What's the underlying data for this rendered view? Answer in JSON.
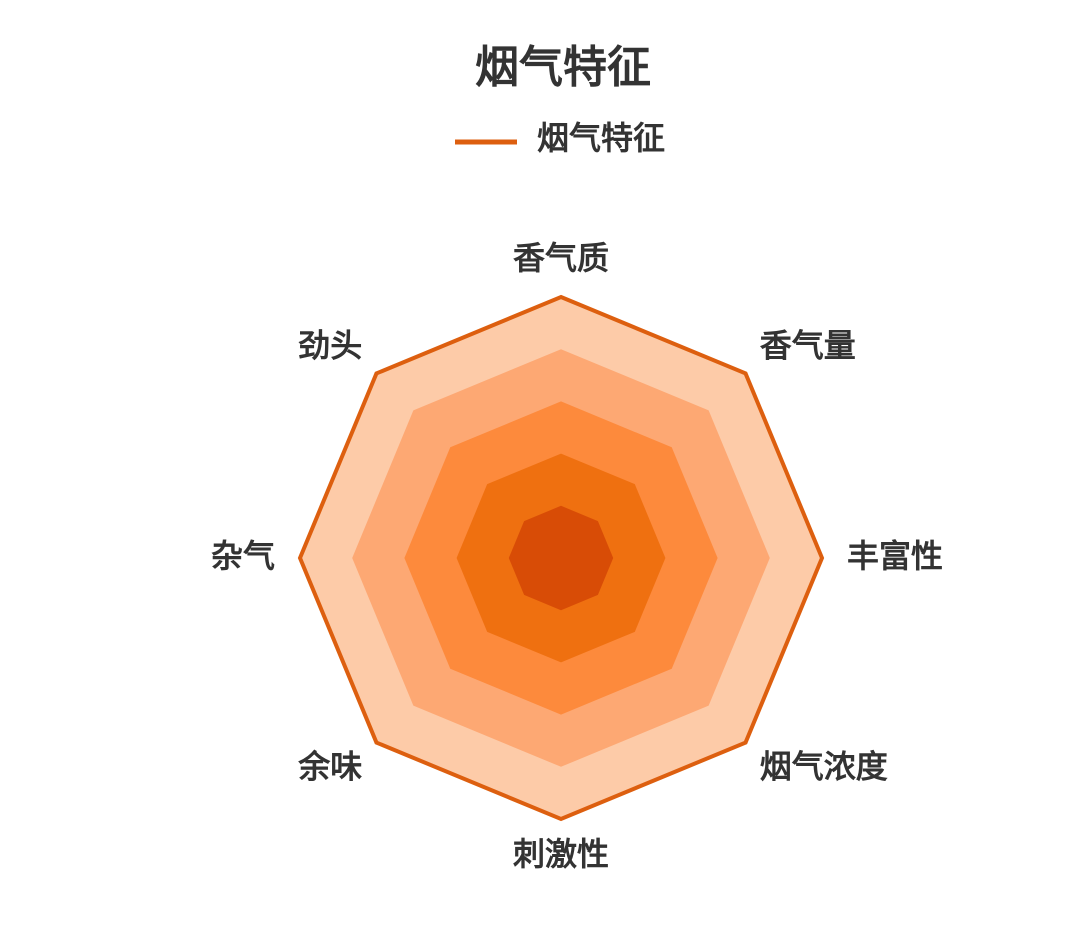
{
  "chart_data": {
    "type": "radar",
    "title": "烟气特征",
    "categories": [
      "香气质",
      "香气量",
      "丰富性",
      "烟气浓度",
      "刺激性",
      "余味",
      "杂气",
      "劲头"
    ],
    "rlim": [
      0,
      100
    ],
    "series": [
      {
        "name": "烟气特征",
        "color": "#dd5f0f",
        "values": [
          100,
          100,
          100,
          100,
          100,
          100,
          100,
          100
        ]
      }
    ]
  }
}
